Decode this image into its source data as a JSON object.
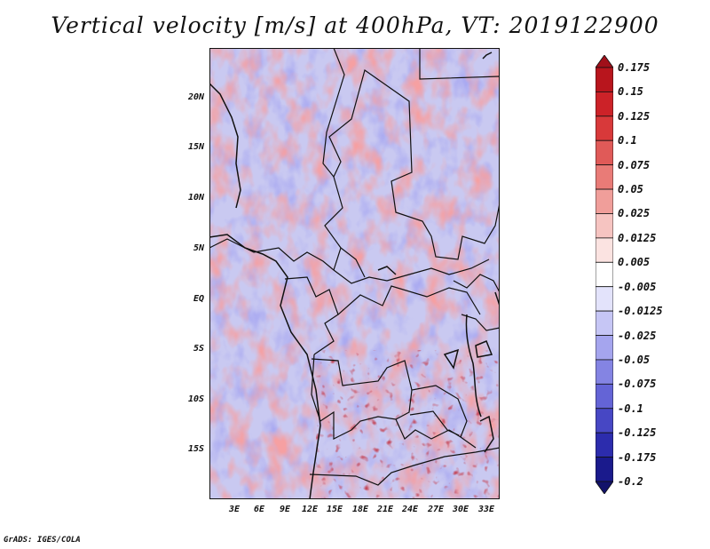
{
  "title": "Vertical velocity [m/s] at 400hPa, VT: 2019122900",
  "footer": "GrADS: IGES/COLA",
  "lat_labels": [
    "20N",
    "15N",
    "10N",
    "5N",
    "EQ",
    "5S",
    "10S",
    "15S"
  ],
  "lon_labels": [
    "3E",
    "6E",
    "9E",
    "12E",
    "15E",
    "18E",
    "21E",
    "24E",
    "27E",
    "30E",
    "33E"
  ],
  "colorbar": {
    "labels": [
      "0.175",
      "0.15",
      "0.125",
      "0.1",
      "0.075",
      "0.05",
      "0.025",
      "0.0125",
      "0.005",
      "-0.005",
      "-0.0125",
      "-0.025",
      "-0.05",
      "-0.075",
      "-0.1",
      "-0.125",
      "-0.175",
      "-0.2"
    ],
    "colors": [
      "#a0101a",
      "#b8151d",
      "#cc2228",
      "#d8393a",
      "#e05a58",
      "#e97b77",
      "#f09e9a",
      "#f6c4c1",
      "#fbe3e1",
      "#ffffff",
      "#e3e3fb",
      "#c6c6f5",
      "#a5a5ee",
      "#8484e3",
      "#6464d6",
      "#4747c4",
      "#2c2cad",
      "#1a1a8c",
      "#12126a"
    ]
  }
}
